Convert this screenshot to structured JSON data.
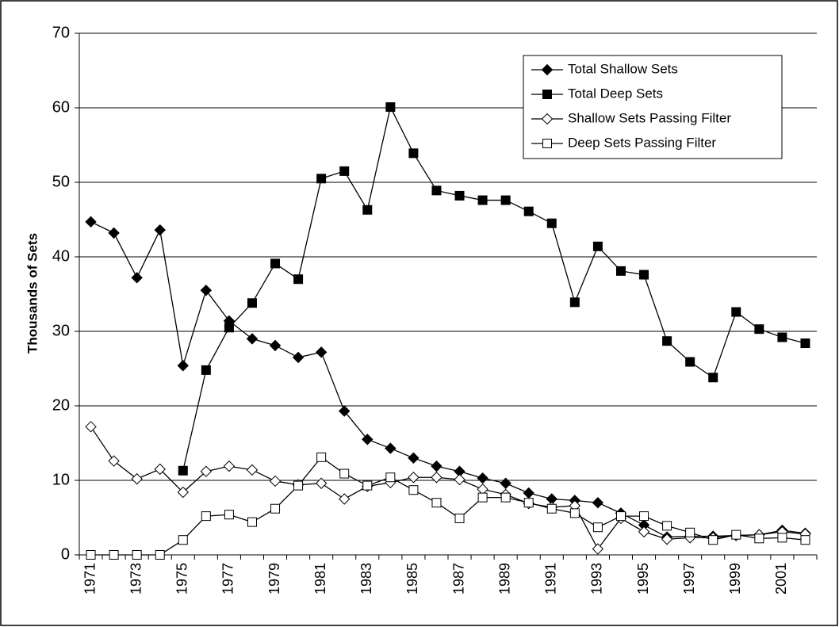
{
  "chart_data": {
    "type": "line",
    "ylabel": "Thousands of Sets",
    "categories": [
      "1971",
      null,
      "1973",
      null,
      "1975",
      null,
      "1977",
      null,
      "1979",
      null,
      "1981",
      null,
      "1983",
      null,
      "1985",
      null,
      "1987",
      null,
      "1989",
      null,
      "1991",
      null,
      "1993",
      null,
      "1995",
      null,
      "1997",
      null,
      "1999",
      null,
      "2001",
      null
    ],
    "ylim": [
      0,
      70
    ],
    "yticks": [
      0,
      10,
      20,
      30,
      40,
      50,
      60,
      70
    ],
    "grid": true,
    "legend": "upper right",
    "series": [
      {
        "name": "Total Shallow Sets",
        "color": "#000000",
        "marker": "diamond",
        "filled": true,
        "values": [
          44.7,
          43.2,
          37.2,
          43.6,
          25.4,
          35.5,
          31.4,
          29.0,
          28.1,
          26.5,
          27.2,
          19.3,
          15.5,
          14.3,
          13.0,
          11.9,
          11.2,
          10.3,
          9.6,
          8.3,
          7.5,
          7.3,
          7.0,
          5.6,
          4.0,
          2.4,
          2.5,
          2.5,
          2.6,
          2.7,
          3.3,
          2.9
        ]
      },
      {
        "name": "Total Deep Sets",
        "color": "#000000",
        "marker": "square",
        "filled": true,
        "values": [
          null,
          null,
          null,
          null,
          11.3,
          24.8,
          30.5,
          33.8,
          39.1,
          37.0,
          50.5,
          51.5,
          46.3,
          60.1,
          53.9,
          48.9,
          48.2,
          47.6,
          47.6,
          46.1,
          44.5,
          33.9,
          41.4,
          38.1,
          37.6,
          28.7,
          25.9,
          23.8,
          32.6,
          30.3,
          29.2,
          28.4
        ]
      },
      {
        "name": "Shallow Sets Passing Filter",
        "color": "#000000",
        "marker": "diamond",
        "filled": false,
        "values": [
          17.2,
          12.6,
          10.2,
          11.5,
          8.4,
          11.2,
          11.9,
          11.4,
          9.9,
          9.4,
          9.6,
          7.5,
          9.2,
          9.7,
          10.4,
          10.4,
          10.1,
          8.8,
          8.1,
          6.9,
          6.4,
          6.6,
          0.8,
          4.9,
          3.1,
          2.1,
          2.3,
          2.3,
          2.6,
          2.7,
          3.1,
          2.8
        ]
      },
      {
        "name": "Deep Sets Passing Filter",
        "color": "#000000",
        "marker": "square",
        "filled": false,
        "values": [
          0,
          0,
          0,
          0,
          2.0,
          5.2,
          5.4,
          4.4,
          6.2,
          9.3,
          13.1,
          10.9,
          9.3,
          10.4,
          8.7,
          7.0,
          4.9,
          7.7,
          7.7,
          7.0,
          6.2,
          5.6,
          3.7,
          5.2,
          5.2,
          3.9,
          3.0,
          2.0,
          2.7,
          2.2,
          2.3,
          2.0
        ]
      }
    ]
  }
}
